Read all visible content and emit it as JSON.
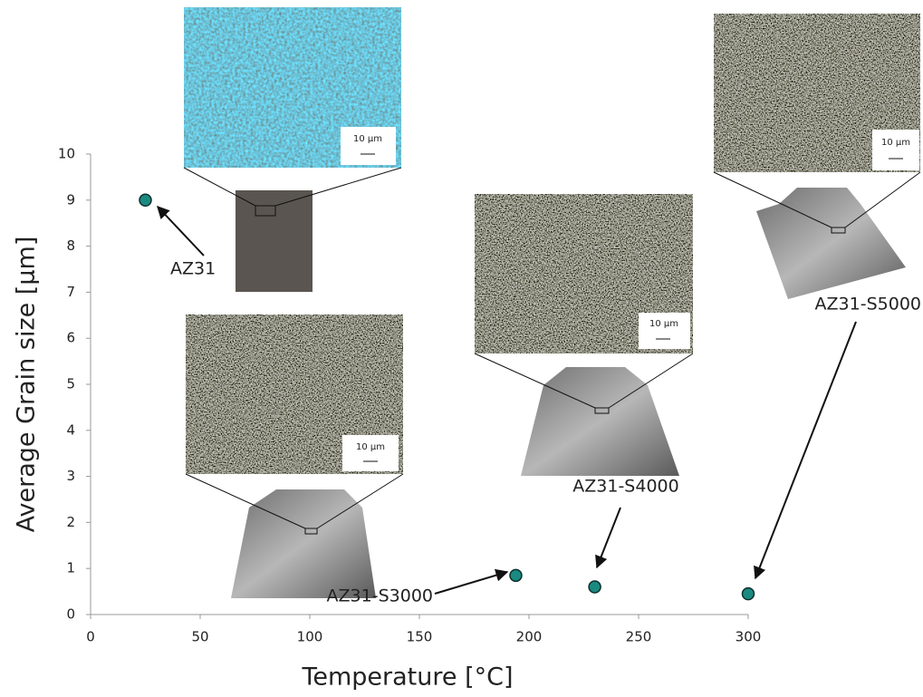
{
  "chart_data": {
    "type": "scatter",
    "xlabel": "Temperature [°C]",
    "ylabel": "Average Grain size [µm]",
    "x": [
      25,
      194,
      230,
      300
    ],
    "values": [
      9.0,
      0.85,
      0.6,
      0.45
    ],
    "color": "#1a8a80",
    "xlim": [
      0,
      300
    ],
    "xticks": [
      0,
      50,
      100,
      150,
      200,
      250,
      300
    ],
    "ylim": [
      0,
      10
    ],
    "yticks": [
      0,
      1,
      2,
      3,
      4,
      5,
      6,
      7,
      8,
      9,
      10
    ],
    "annotations": [
      "AZ31",
      "AZ31-S3000",
      "AZ31-S4000",
      "AZ31-S5000"
    ],
    "scale_bar": "10 µm"
  }
}
